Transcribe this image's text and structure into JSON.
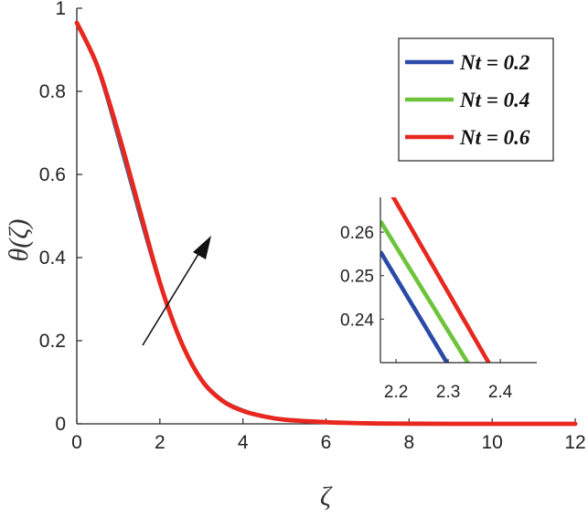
{
  "chart_data": [
    {
      "type": "line",
      "title": "",
      "xlabel": "ζ",
      "ylabel": "θ(ζ)",
      "xlim": [
        0,
        12
      ],
      "ylim": [
        0,
        1
      ],
      "xticks": [
        "0",
        "2",
        "4",
        "6",
        "8",
        "10",
        "12"
      ],
      "yticks": [
        "0",
        "0.2",
        "0.4",
        "0.6",
        "0.8",
        "1"
      ],
      "grid": false,
      "legend_position": "top-right",
      "annotation": "arrow indicating increasing Nt",
      "x": [
        0,
        0.5,
        1,
        1.5,
        2,
        2.5,
        3,
        3.5,
        4,
        4.5,
        5,
        6,
        7,
        8,
        9,
        10,
        11,
        12
      ],
      "series": [
        {
          "name": "Nt = 0.2",
          "color": "#2b4aa8",
          "values": [
            0.965,
            0.85,
            0.68,
            0.5,
            0.33,
            0.2,
            0.11,
            0.06,
            0.035,
            0.02,
            0.012,
            0.005,
            0.002,
            0.001,
            0.0,
            0.0,
            0.0,
            0.0
          ]
        },
        {
          "name": "Nt = 0.4",
          "color": "#6dc43a",
          "values": [
            0.965,
            0.855,
            0.69,
            0.51,
            0.335,
            0.2,
            0.108,
            0.058,
            0.033,
            0.019,
            0.011,
            0.004,
            0.0015,
            0.0005,
            0.0,
            0.0,
            0.0,
            0.0
          ]
        },
        {
          "name": "Nt = 0.6",
          "color": "#e8271f",
          "values": [
            0.965,
            0.86,
            0.7,
            0.52,
            0.34,
            0.2,
            0.106,
            0.056,
            0.031,
            0.018,
            0.01,
            0.004,
            0.0012,
            0.0004,
            0.0,
            0.0,
            0.0,
            0.0
          ]
        }
      ]
    },
    {
      "type": "line",
      "title": "inset",
      "xlim": [
        2.17,
        2.47
      ],
      "ylim": [
        0.23,
        0.268
      ],
      "xticks": [
        "2.2",
        "2.3",
        "2.4"
      ],
      "yticks": [
        "0.24",
        "0.25",
        "0.26"
      ],
      "series": [
        {
          "name": "Nt = 0.2",
          "color": "#2b4aa8",
          "x": [
            2.17,
            2.3
          ],
          "values": [
            0.2555,
            0.2295
          ]
        },
        {
          "name": "Nt = 0.4",
          "color": "#6dc43a",
          "x": [
            2.17,
            2.34
          ],
          "values": [
            0.2625,
            0.2295
          ]
        },
        {
          "name": "Nt = 0.6",
          "color": "#e8271f",
          "x": [
            2.19,
            2.38
          ],
          "values": [
            0.269,
            0.2295
          ]
        }
      ]
    }
  ]
}
